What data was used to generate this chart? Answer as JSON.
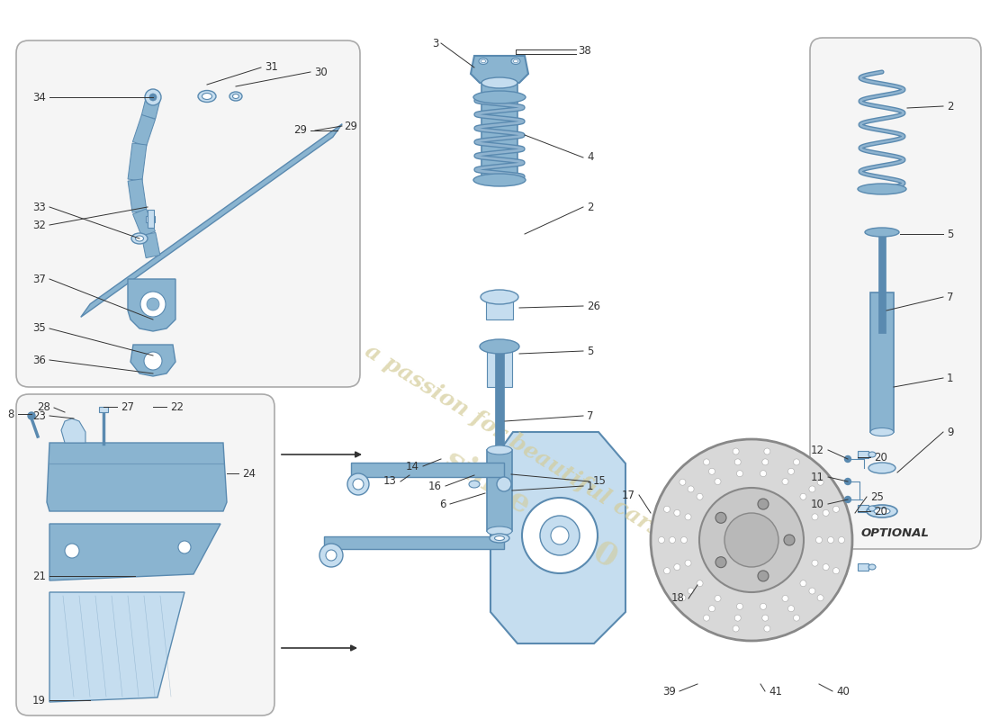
{
  "background_color": "#ffffff",
  "line_color": "#333333",
  "part_color": "#8ab4d0",
  "part_color_dark": "#5a8ab0",
  "part_color_light": "#c5ddef",
  "box_border": "#aaaaaa",
  "box_fill": "#f7f7f7",
  "optional_text": "OPTIONAL",
  "watermark_color": "#d4cc99"
}
